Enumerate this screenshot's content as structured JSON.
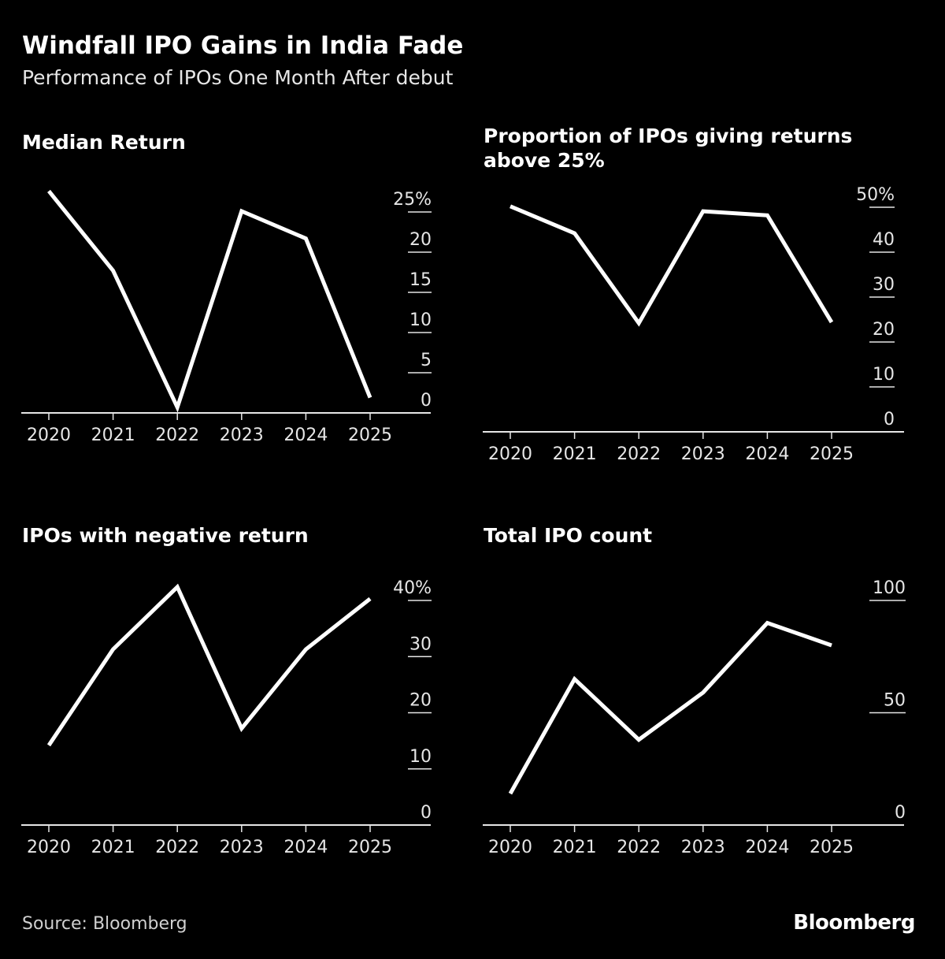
{
  "title": "Windfall IPO Gains in India Fade",
  "subtitle": "Performance of IPOs One Month After debut",
  "source": "Source: Bloomberg",
  "logo": "Bloomberg",
  "colors": {
    "background": "#000000",
    "line": "#ffffff",
    "axis": "#e6e6e6"
  },
  "chart_data": [
    {
      "type": "line",
      "title": "Median Return",
      "categories": [
        "2020",
        "2021",
        "2022",
        "2023",
        "2024",
        "2025"
      ],
      "values": [
        27.6,
        17.7,
        0.7,
        25.1,
        21.7,
        1.9
      ],
      "ylim": [
        0,
        25
      ],
      "yticks": [
        0,
        5,
        10,
        15,
        20,
        25
      ],
      "yunit": "%",
      "axis_side": "right",
      "grid": false
    },
    {
      "type": "line",
      "title": "Proportion of IPOs giving returns above 25%",
      "categories": [
        "2020",
        "2021",
        "2022",
        "2023",
        "2024",
        "2025"
      ],
      "values": [
        50.2,
        44.2,
        24.2,
        49.1,
        48.2,
        24.4
      ],
      "ylim": [
        0,
        50
      ],
      "yticks": [
        0,
        10,
        20,
        30,
        40,
        50
      ],
      "yunit": "%",
      "axis_side": "right",
      "grid": false
    },
    {
      "type": "line",
      "title": "IPOs with negative return",
      "categories": [
        "2020",
        "2021",
        "2022",
        "2023",
        "2024",
        "2025"
      ],
      "values": [
        14.2,
        31.3,
        42.4,
        17.2,
        31.3,
        40.3
      ],
      "ylim": [
        0,
        40
      ],
      "yticks": [
        0,
        10,
        20,
        30,
        40
      ],
      "yunit": "%",
      "axis_side": "right",
      "grid": false
    },
    {
      "type": "line",
      "title": "Total IPO count",
      "categories": [
        "2020",
        "2021",
        "2022",
        "2023",
        "2024",
        "2025"
      ],
      "values": [
        14,
        65,
        38,
        59,
        90,
        80
      ],
      "ylim": [
        0,
        100
      ],
      "yticks": [
        0,
        50,
        100
      ],
      "yunit": "",
      "axis_side": "right",
      "grid": false
    }
  ]
}
